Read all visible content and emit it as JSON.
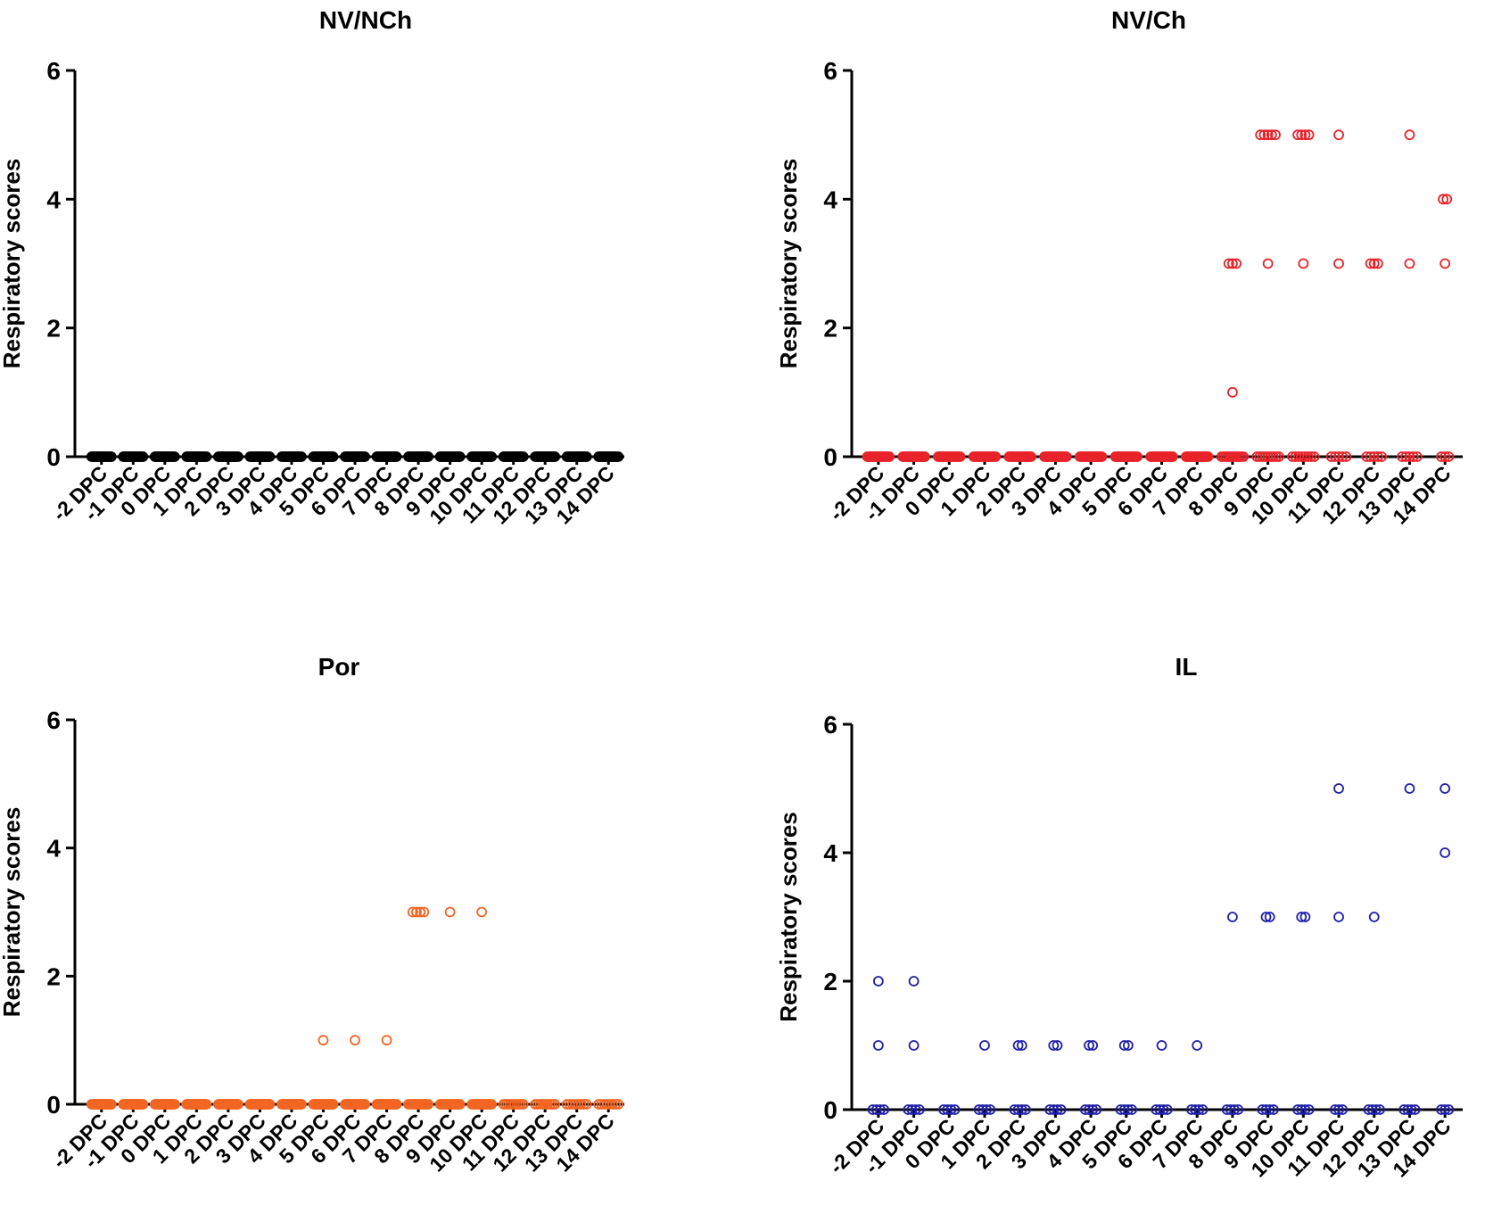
{
  "chart_data": [
    {
      "type": "scatter",
      "title": "NV/NCh",
      "ylabel": "Respiratory scores",
      "xlabel": "",
      "ylim": [
        0,
        6
      ],
      "yticks": [
        0,
        2,
        4,
        6
      ],
      "categories": [
        "-2 DPC",
        "-1 DPC",
        "0 DPC",
        "1 DPC",
        "2 DPC",
        "3 DPC",
        "4 DPC",
        "5 DPC",
        "6 DPC",
        "7 DPC",
        "8 DPC",
        "9 DPC",
        "10 DPC",
        "11 DPC",
        "12 DPC",
        "13 DPC",
        "14 DPC"
      ],
      "marker_color": "#000000",
      "marker_style": "open-circle",
      "points": [
        [
          0,
          0,
          0,
          0,
          0,
          0,
          0,
          0,
          0,
          0,
          0,
          0,
          0,
          0,
          0,
          0,
          0,
          0,
          0,
          0
        ],
        [
          0,
          0,
          0,
          0,
          0,
          0,
          0,
          0,
          0,
          0,
          0,
          0,
          0,
          0,
          0,
          0,
          0,
          0,
          0,
          0
        ],
        [
          0,
          0,
          0,
          0,
          0,
          0,
          0,
          0,
          0,
          0,
          0,
          0,
          0,
          0,
          0,
          0,
          0,
          0,
          0,
          0
        ],
        [
          0,
          0,
          0,
          0,
          0,
          0,
          0,
          0,
          0,
          0,
          0,
          0,
          0,
          0,
          0,
          0,
          0,
          0,
          0,
          0
        ],
        [
          0,
          0,
          0,
          0,
          0,
          0,
          0,
          0,
          0,
          0,
          0,
          0,
          0,
          0,
          0,
          0,
          0,
          0,
          0,
          0
        ],
        [
          0,
          0,
          0,
          0,
          0,
          0,
          0,
          0,
          0,
          0,
          0,
          0,
          0,
          0,
          0,
          0,
          0,
          0,
          0,
          0
        ],
        [
          0,
          0,
          0,
          0,
          0,
          0,
          0,
          0,
          0,
          0,
          0,
          0,
          0,
          0,
          0,
          0,
          0,
          0,
          0,
          0
        ],
        [
          0,
          0,
          0,
          0,
          0,
          0,
          0,
          0,
          0,
          0,
          0,
          0,
          0,
          0,
          0,
          0,
          0,
          0,
          0,
          0
        ],
        [
          0,
          0,
          0,
          0,
          0,
          0,
          0,
          0,
          0,
          0,
          0,
          0,
          0,
          0,
          0,
          0,
          0,
          0,
          0,
          0
        ],
        [
          0,
          0,
          0,
          0,
          0,
          0,
          0,
          0,
          0,
          0,
          0,
          0,
          0,
          0,
          0,
          0,
          0,
          0,
          0,
          0
        ],
        [
          0,
          0,
          0,
          0,
          0,
          0,
          0,
          0,
          0,
          0,
          0,
          0,
          0,
          0,
          0,
          0,
          0,
          0,
          0,
          0
        ],
        [
          0,
          0,
          0,
          0,
          0,
          0,
          0,
          0,
          0,
          0,
          0,
          0,
          0,
          0,
          0,
          0,
          0,
          0,
          0,
          0
        ],
        [
          0,
          0,
          0,
          0,
          0,
          0,
          0,
          0,
          0,
          0,
          0,
          0,
          0,
          0,
          0,
          0,
          0,
          0,
          0,
          0
        ],
        [
          0,
          0,
          0,
          0,
          0,
          0,
          0,
          0,
          0,
          0,
          0,
          0,
          0,
          0,
          0,
          0,
          0,
          0,
          0,
          0
        ],
        [
          0,
          0,
          0,
          0,
          0,
          0,
          0,
          0,
          0,
          0,
          0,
          0,
          0,
          0,
          0,
          0,
          0,
          0,
          0,
          0
        ],
        [
          0,
          0,
          0,
          0,
          0,
          0,
          0,
          0,
          0,
          0,
          0,
          0,
          0,
          0,
          0,
          0,
          0,
          0,
          0,
          0
        ],
        [
          0,
          0,
          0,
          0,
          0,
          0,
          0,
          0,
          0,
          0,
          0,
          0,
          0,
          0,
          0,
          0,
          0,
          0,
          0,
          0
        ]
      ]
    },
    {
      "type": "scatter",
      "title": "NV/Ch",
      "ylabel": "Respiratory scores",
      "xlabel": "",
      "ylim": [
        0,
        6
      ],
      "yticks": [
        0,
        2,
        4,
        6
      ],
      "categories": [
        "-2 DPC",
        "-1 DPC",
        "0 DPC",
        "1 DPC",
        "2 DPC",
        "3 DPC",
        "4 DPC",
        "5 DPC",
        "6 DPC",
        "7 DPC",
        "8 DPC",
        "9 DPC",
        "10 DPC",
        "11 DPC",
        "12 DPC",
        "13 DPC",
        "14 DPC"
      ],
      "marker_color": "#e8232a",
      "marker_style": "open-circle",
      "points": [
        [
          0,
          0,
          0,
          0,
          0,
          0,
          0,
          0,
          0,
          0,
          0,
          0,
          0,
          0,
          0,
          0,
          0,
          0,
          0,
          0
        ],
        [
          0,
          0,
          0,
          0,
          0,
          0,
          0,
          0,
          0,
          0,
          0,
          0,
          0,
          0,
          0,
          0,
          0,
          0,
          0,
          0
        ],
        [
          0,
          0,
          0,
          0,
          0,
          0,
          0,
          0,
          0,
          0,
          0,
          0,
          0,
          0,
          0,
          0,
          0,
          0,
          0,
          0
        ],
        [
          0,
          0,
          0,
          0,
          0,
          0,
          0,
          0,
          0,
          0,
          0,
          0,
          0,
          0,
          0,
          0,
          0,
          0,
          0,
          0
        ],
        [
          0,
          0,
          0,
          0,
          0,
          0,
          0,
          0,
          0,
          0,
          0,
          0,
          0,
          0,
          0,
          0,
          0,
          0,
          0,
          0
        ],
        [
          0,
          0,
          0,
          0,
          0,
          0,
          0,
          0,
          0,
          0,
          0,
          0,
          0,
          0,
          0,
          0,
          0,
          0,
          0,
          0
        ],
        [
          0,
          0,
          0,
          0,
          0,
          0,
          0,
          0,
          0,
          0,
          0,
          0,
          0,
          0,
          0,
          0,
          0,
          0,
          0,
          0
        ],
        [
          0,
          0,
          0,
          0,
          0,
          0,
          0,
          0,
          0,
          0,
          0,
          0,
          0,
          0,
          0,
          0,
          0,
          0,
          0,
          0
        ],
        [
          0,
          0,
          0,
          0,
          0,
          0,
          0,
          0,
          0,
          0,
          0,
          0,
          0,
          0,
          0,
          0,
          0,
          0,
          0,
          0
        ],
        [
          0,
          0,
          0,
          0,
          0,
          0,
          0,
          0,
          0,
          0,
          0,
          0,
          0,
          0,
          0,
          0,
          0,
          0,
          0,
          0
        ],
        [
          3,
          3,
          3,
          1,
          0,
          0,
          0,
          0,
          0,
          0,
          0,
          0,
          0,
          0,
          0,
          0
        ],
        [
          5,
          5,
          5,
          5,
          5,
          3,
          0,
          0,
          0,
          0,
          0,
          0,
          0,
          0,
          0
        ],
        [
          5,
          5,
          5,
          5,
          3,
          0,
          0,
          0,
          0,
          0,
          0,
          0,
          0
        ],
        [
          5,
          3,
          0,
          0,
          0,
          0,
          0
        ],
        [
          3,
          3,
          3,
          0,
          0,
          0,
          0,
          0
        ],
        [
          5,
          3,
          0,
          0,
          0,
          0,
          0
        ],
        [
          4,
          4,
          3,
          0,
          0,
          0
        ]
      ]
    },
    {
      "type": "scatter",
      "title": "Por",
      "ylabel": "Respiratory scores",
      "xlabel": "",
      "ylim": [
        0,
        6
      ],
      "yticks": [
        0,
        2,
        4,
        6
      ],
      "categories": [
        "-2 DPC",
        "-1 DPC",
        "0 DPC",
        "1 DPC",
        "2 DPC",
        "3 DPC",
        "4 DPC",
        "5 DPC",
        "6 DPC",
        "7 DPC",
        "8 DPC",
        "9 DPC",
        "10 DPC",
        "11 DPC",
        "12 DPC",
        "13 DPC",
        "14 DPC"
      ],
      "marker_color": "#f26522",
      "marker_style": "open-circle",
      "points": [
        [
          0,
          0,
          0,
          0,
          0,
          0,
          0,
          0,
          0,
          0,
          0,
          0,
          0,
          0,
          0,
          0,
          0,
          0,
          0,
          0
        ],
        [
          0,
          0,
          0,
          0,
          0,
          0,
          0,
          0,
          0,
          0,
          0,
          0,
          0,
          0,
          0,
          0,
          0,
          0,
          0,
          0
        ],
        [
          0,
          0,
          0,
          0,
          0,
          0,
          0,
          0,
          0,
          0,
          0,
          0,
          0,
          0,
          0,
          0,
          0,
          0,
          0,
          0
        ],
        [
          0,
          0,
          0,
          0,
          0,
          0,
          0,
          0,
          0,
          0,
          0,
          0,
          0,
          0,
          0,
          0,
          0,
          0,
          0,
          0
        ],
        [
          0,
          0,
          0,
          0,
          0,
          0,
          0,
          0,
          0,
          0,
          0,
          0,
          0,
          0,
          0,
          0,
          0,
          0,
          0,
          0
        ],
        [
          0,
          0,
          0,
          0,
          0,
          0,
          0,
          0,
          0,
          0,
          0,
          0,
          0,
          0,
          0,
          0,
          0,
          0,
          0,
          0
        ],
        [
          0,
          0,
          0,
          0,
          0,
          0,
          0,
          0,
          0,
          0,
          0,
          0,
          0,
          0,
          0,
          0,
          0,
          0,
          0,
          0
        ],
        [
          1,
          0,
          0,
          0,
          0,
          0,
          0,
          0,
          0,
          0,
          0,
          0,
          0,
          0,
          0,
          0,
          0,
          0,
          0
        ],
        [
          1,
          0,
          0,
          0,
          0,
          0,
          0,
          0,
          0,
          0,
          0,
          0,
          0,
          0,
          0,
          0,
          0,
          0,
          0
        ],
        [
          1,
          0,
          0,
          0,
          0,
          0,
          0,
          0,
          0,
          0,
          0,
          0,
          0,
          0,
          0,
          0,
          0,
          0,
          0
        ],
        [
          3,
          3,
          3,
          3,
          0,
          0,
          0,
          0,
          0,
          0,
          0,
          0,
          0,
          0,
          0,
          0,
          0
        ],
        [
          3,
          0,
          0,
          0,
          0,
          0,
          0,
          0,
          0,
          0,
          0,
          0,
          0,
          0,
          0,
          0,
          0
        ],
        [
          3,
          0,
          0,
          0,
          0,
          0,
          0,
          0,
          0,
          0,
          0,
          0,
          0,
          0,
          0,
          0
        ],
        [
          0,
          0,
          0,
          0,
          0,
          0,
          0,
          0,
          0,
          0
        ],
        [
          0,
          0,
          0,
          0,
          0,
          0,
          0,
          0,
          0
        ],
        [
          0,
          0,
          0,
          0,
          0,
          0,
          0,
          0
        ],
        [
          0,
          0,
          0,
          0,
          0,
          0,
          0,
          0
        ]
      ]
    },
    {
      "type": "scatter",
      "title": "IL",
      "ylabel": "Respiratory scores",
      "xlabel": "",
      "ylim": [
        0,
        6
      ],
      "yticks": [
        0,
        2,
        4,
        6
      ],
      "categories": [
        "-2 DPC",
        "-1 DPC",
        "0 DPC",
        "1 DPC",
        "2 DPC",
        "3 DPC",
        "4 DPC",
        "5 DPC",
        "6 DPC",
        "7 DPC",
        "8 DPC",
        "9 DPC",
        "10 DPC",
        "11 DPC",
        "12 DPC",
        "13 DPC",
        "14 DPC"
      ],
      "marker_color": "#1f1fa8",
      "marker_style": "open-circle",
      "points": [
        [
          2,
          1,
          0,
          0,
          0,
          0
        ],
        [
          2,
          1,
          0,
          0,
          0,
          0
        ],
        [
          0,
          0,
          0,
          0
        ],
        [
          1,
          0,
          0,
          0,
          0
        ],
        [
          1,
          1,
          0,
          0,
          0,
          0
        ],
        [
          1,
          1,
          0,
          0,
          0,
          0
        ],
        [
          1,
          1,
          0,
          0,
          0,
          0
        ],
        [
          1,
          1,
          0,
          0,
          0,
          0
        ],
        [
          1,
          0,
          0,
          0,
          0
        ],
        [
          1,
          0,
          0,
          0,
          0
        ],
        [
          3,
          0,
          0,
          0,
          0
        ],
        [
          3,
          3,
          0,
          0,
          0,
          0
        ],
        [
          3,
          3,
          0,
          0,
          0,
          0
        ],
        [
          5,
          3,
          0,
          0,
          0
        ],
        [
          3,
          0,
          0,
          0,
          0
        ],
        [
          5,
          0,
          0,
          0,
          0
        ],
        [
          5,
          4,
          0,
          0,
          0
        ]
      ]
    }
  ]
}
